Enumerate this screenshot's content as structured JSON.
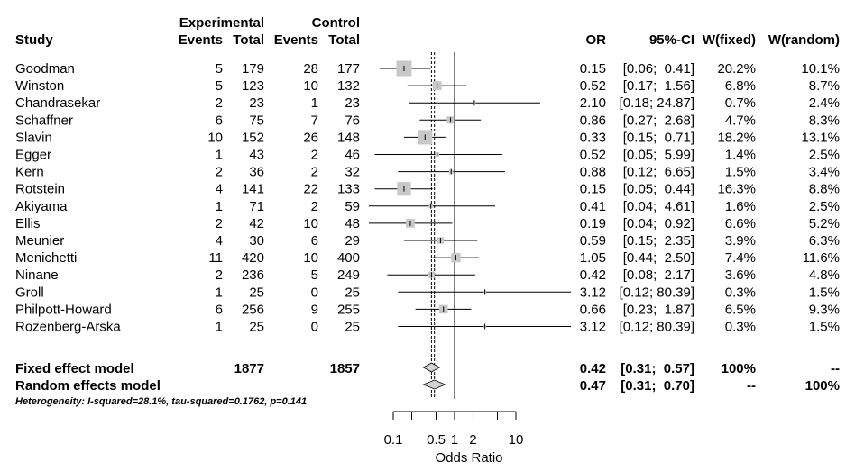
{
  "chart_data": {
    "type": "forest",
    "headers": {
      "study": "Study",
      "experimental": "Experimental",
      "control": "Control",
      "events": "Events",
      "total": "Total",
      "or": "OR",
      "ci": "95%-CI",
      "w_fixed": "W(fixed)",
      "w_random": "W(random)"
    },
    "studies": [
      {
        "name": "Goodman",
        "e_events": "5",
        "e_total": "179",
        "c_events": "28",
        "c_total": "177",
        "or": 0.15,
        "lo": 0.06,
        "hi": 0.41,
        "or_text": "0.15",
        "ci_text": "[0.06;  0.41]",
        "w_fixed": "20.2%",
        "w_random": "10.1%",
        "weight": 20.2
      },
      {
        "name": "Winston",
        "e_events": "5",
        "e_total": "123",
        "c_events": "10",
        "c_total": "132",
        "or": 0.52,
        "lo": 0.17,
        "hi": 1.56,
        "or_text": "0.52",
        "ci_text": "[0.17;  1.56]",
        "w_fixed": "6.8%",
        "w_random": "8.7%",
        "weight": 6.8
      },
      {
        "name": "Chandrasekar",
        "e_events": "2",
        "e_total": "23",
        "c_events": "1",
        "c_total": "23",
        "or": 2.1,
        "lo": 0.18,
        "hi": 24.87,
        "or_text": "2.10",
        "ci_text": "[0.18; 24.87]",
        "w_fixed": "0.7%",
        "w_random": "2.4%",
        "weight": 0.7
      },
      {
        "name": "Schaffner",
        "e_events": "6",
        "e_total": "75",
        "c_events": "7",
        "c_total": "76",
        "or": 0.86,
        "lo": 0.27,
        "hi": 2.68,
        "or_text": "0.86",
        "ci_text": "[0.27;  2.68]",
        "w_fixed": "4.7%",
        "w_random": "8.3%",
        "weight": 4.7
      },
      {
        "name": "Slavin",
        "e_events": "10",
        "e_total": "152",
        "c_events": "26",
        "c_total": "148",
        "or": 0.33,
        "lo": 0.15,
        "hi": 0.71,
        "or_text": "0.33",
        "ci_text": "[0.15;  0.71]",
        "w_fixed": "18.2%",
        "w_random": "13.1%",
        "weight": 18.2
      },
      {
        "name": "Egger",
        "e_events": "1",
        "e_total": "43",
        "c_events": "2",
        "c_total": "46",
        "or": 0.52,
        "lo": 0.05,
        "hi": 5.99,
        "or_text": "0.52",
        "ci_text": "[0.05;  5.99]",
        "w_fixed": "1.4%",
        "w_random": "2.5%",
        "weight": 1.4
      },
      {
        "name": "Kern",
        "e_events": "2",
        "e_total": "36",
        "c_events": "2",
        "c_total": "32",
        "or": 0.88,
        "lo": 0.12,
        "hi": 6.65,
        "or_text": "0.88",
        "ci_text": "[0.12;  6.65]",
        "w_fixed": "1.5%",
        "w_random": "3.4%",
        "weight": 1.5
      },
      {
        "name": "Rotstein",
        "e_events": "4",
        "e_total": "141",
        "c_events": "22",
        "c_total": "133",
        "or": 0.15,
        "lo": 0.05,
        "hi": 0.44,
        "or_text": "0.15",
        "ci_text": "[0.05;  0.44]",
        "w_fixed": "16.3%",
        "w_random": "8.8%",
        "weight": 16.3
      },
      {
        "name": "Akiyama",
        "e_events": "1",
        "e_total": "71",
        "c_events": "2",
        "c_total": "59",
        "or": 0.41,
        "lo": 0.04,
        "hi": 4.61,
        "or_text": "0.41",
        "ci_text": "[0.04;  4.61]",
        "w_fixed": "1.6%",
        "w_random": "2.5%",
        "weight": 1.6
      },
      {
        "name": "Ellis",
        "e_events": "2",
        "e_total": "42",
        "c_events": "10",
        "c_total": "48",
        "or": 0.19,
        "lo": 0.04,
        "hi": 0.92,
        "or_text": "0.19",
        "ci_text": "[0.04;  0.92]",
        "w_fixed": "6.6%",
        "w_random": "5.2%",
        "weight": 6.6
      },
      {
        "name": "Meunier",
        "e_events": "4",
        "e_total": "30",
        "c_events": "6",
        "c_total": "29",
        "or": 0.59,
        "lo": 0.15,
        "hi": 2.35,
        "or_text": "0.59",
        "ci_text": "[0.15;  2.35]",
        "w_fixed": "3.9%",
        "w_random": "6.3%",
        "weight": 3.9
      },
      {
        "name": "Menichetti",
        "e_events": "11",
        "e_total": "420",
        "c_events": "10",
        "c_total": "400",
        "or": 1.05,
        "lo": 0.44,
        "hi": 2.5,
        "or_text": "1.05",
        "ci_text": "[0.44;  2.50]",
        "w_fixed": "7.4%",
        "w_random": "11.6%",
        "weight": 7.4
      },
      {
        "name": "Ninane",
        "e_events": "2",
        "e_total": "236",
        "c_events": "5",
        "c_total": "249",
        "or": 0.42,
        "lo": 0.08,
        "hi": 2.17,
        "or_text": "0.42",
        "ci_text": "[0.08;  2.17]",
        "w_fixed": "3.6%",
        "w_random": "4.8%",
        "weight": 3.6
      },
      {
        "name": "Groll",
        "e_events": "1",
        "e_total": "25",
        "c_events": "0",
        "c_total": "25",
        "or": 3.12,
        "lo": 0.12,
        "hi": 80.39,
        "or_text": "3.12",
        "ci_text": "[0.12; 80.39]",
        "w_fixed": "0.3%",
        "w_random": "1.5%",
        "weight": 0.3
      },
      {
        "name": "Philpott-Howard",
        "e_events": "6",
        "e_total": "256",
        "c_events": "9",
        "c_total": "255",
        "or": 0.66,
        "lo": 0.23,
        "hi": 1.87,
        "or_text": "0.66",
        "ci_text": "[0.23;  1.87]",
        "w_fixed": "6.5%",
        "w_random": "9.3%",
        "weight": 6.5
      },
      {
        "name": "Rozenberg-Arska",
        "e_events": "1",
        "e_total": "25",
        "c_events": "0",
        "c_total": "25",
        "or": 3.12,
        "lo": 0.12,
        "hi": 80.39,
        "or_text": "3.12",
        "ci_text": "[0.12; 80.39]",
        "w_fixed": "0.3%",
        "w_random": "1.5%",
        "weight": 0.3
      }
    ],
    "summaries": [
      {
        "name": "Fixed effect model",
        "e_total": "1877",
        "c_total": "1857",
        "or": 0.42,
        "lo": 0.31,
        "hi": 0.57,
        "or_text": "0.42",
        "ci_text": "[0.31;  0.57]",
        "w_fixed": "100%",
        "w_random": "--"
      },
      {
        "name": "Random effects model",
        "e_total": "",
        "c_total": "",
        "or": 0.47,
        "lo": 0.31,
        "hi": 0.7,
        "or_text": "0.47",
        "ci_text": "[0.31;  0.70]",
        "w_fixed": "--",
        "w_random": "100%"
      }
    ],
    "heterogeneity": "Heterogeneity: I-squared=28.1%, tau-squared=0.1762, p=0.141",
    "x_axis": {
      "label": "Odds Ratio",
      "scale": "log",
      "ticks": [
        0.1,
        0.5,
        1,
        2,
        10
      ],
      "tick_labels": [
        "0.1",
        "0.5",
        "1",
        "2",
        "10"
      ],
      "minor_ticks": [
        0.1,
        0.2,
        0.5,
        1,
        2,
        5,
        10
      ],
      "reference_line": 1
    },
    "colors": {
      "box": "#c8c8c8",
      "diamond": "#d3d3d3",
      "line": "#000000"
    }
  }
}
